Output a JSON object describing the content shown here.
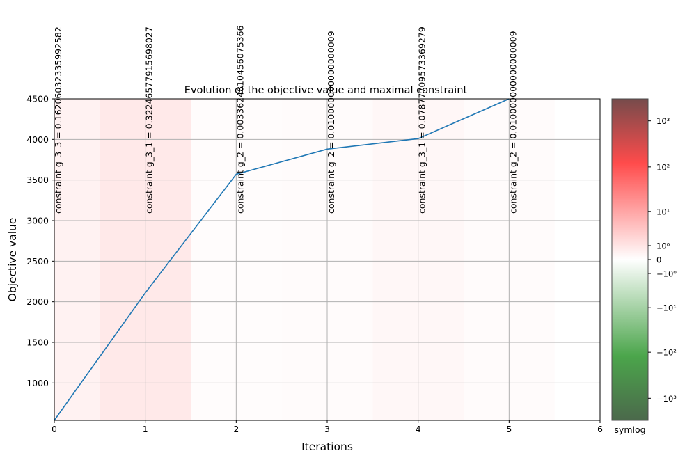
{
  "chart_data": {
    "type": "line",
    "title": "Evolution of the objective value and maximal constraint",
    "xlabel": "Iterations",
    "ylabel": "Objective value",
    "xlim": [
      0,
      6
    ],
    "ylim": [
      540,
      4500
    ],
    "xticks": [
      0,
      1,
      2,
      3,
      4,
      5,
      6
    ],
    "yticks": [
      1000,
      1500,
      2000,
      2500,
      3000,
      3500,
      4000,
      4500
    ],
    "grid": true,
    "x": [
      0,
      1,
      2,
      3,
      4,
      5
    ],
    "values": [
      540,
      2110,
      3570,
      3880,
      4010,
      4500
    ],
    "series_color": "#1f77b4",
    "annotations": [
      {
        "x": 0,
        "text": "constraint g_3_3 = 0.16206032335992582"
      },
      {
        "x": 1,
        "text": "constraint g_3_1 = 0.32246577915698027"
      },
      {
        "x": 2,
        "text": "constraint g_2 = 0.0033624810456075366"
      },
      {
        "x": 3,
        "text": "constraint g_2 = 0.010000000000000009"
      },
      {
        "x": 4,
        "text": "constraint g_3_1 = 0.07877709573369279"
      },
      {
        "x": 5,
        "text": "constraint g_2 = 0.010000000000000009"
      }
    ],
    "background_constraint_values": [
      0.16206032335992582,
      0.32246577915698027,
      0.0033624810456075365,
      0.010000000000000009,
      0.07877709573369279,
      0.010000000000000009
    ],
    "colorbar": {
      "label": "symlog",
      "scale": "symlog",
      "range": [
        -3000,
        3000
      ],
      "positive_color": "#ff0000",
      "negative_color": "#008000",
      "ticks": [
        {
          "value": 1000,
          "label": "10³"
        },
        {
          "value": 100,
          "label": "10²"
        },
        {
          "value": 10,
          "label": "10¹"
        },
        {
          "value": 1,
          "label": "10⁰"
        },
        {
          "value": 0,
          "label": "0"
        },
        {
          "value": -1,
          "label": "−10⁰"
        },
        {
          "value": -10,
          "label": "−10¹"
        },
        {
          "value": -100,
          "label": "−10²"
        },
        {
          "value": -1000,
          "label": "−10³"
        }
      ]
    }
  }
}
